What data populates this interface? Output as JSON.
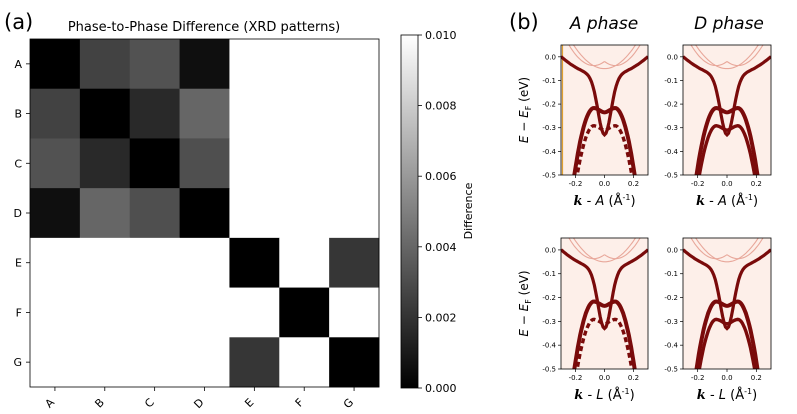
{
  "panel_labels": {
    "a": "(a)",
    "b": "(b)"
  },
  "chart_data": [
    {
      "type": "heatmap",
      "title": "Phase-to-Phase Difference (XRD patterns)",
      "rows": [
        "A",
        "B",
        "C",
        "D",
        "E",
        "F",
        "G"
      ],
      "cols": [
        "A",
        "B",
        "C",
        "D",
        "E",
        "F",
        "G"
      ],
      "values": [
        [
          0.0,
          0.0026,
          0.0032,
          0.0006,
          null,
          null,
          null
        ],
        [
          0.0026,
          0.0,
          0.0016,
          0.004,
          null,
          null,
          null
        ],
        [
          0.0032,
          0.0016,
          0.0,
          0.0031,
          null,
          null,
          null
        ],
        [
          0.0006,
          0.004,
          0.0031,
          0.0,
          null,
          null,
          null
        ],
        [
          null,
          null,
          null,
          null,
          0.0,
          null,
          0.0021
        ],
        [
          null,
          null,
          null,
          null,
          null,
          0.0,
          null
        ],
        [
          null,
          null,
          null,
          null,
          0.0021,
          null,
          0.0
        ]
      ],
      "colorbar": {
        "label": "Difference",
        "min": 0.0,
        "max": 0.01,
        "ticks": [
          "0.000",
          "0.002",
          "0.004",
          "0.006",
          "0.008",
          "0.010"
        ],
        "tick_values": [
          0,
          0.002,
          0.004,
          0.006,
          0.008,
          0.01
        ],
        "colormap": "gray"
      }
    },
    {
      "type": "band-structure",
      "column_titles": [
        "A phase",
        "D phase"
      ],
      "ylabel": "E − E_F (eV)",
      "ylabel_main": "E − E",
      "ylabel_sub": "F",
      "ylabel_unit": " (eV)",
      "ylim": [
        -0.5,
        0.05
      ],
      "xlim": [
        -0.3,
        0.3
      ],
      "y_ticks": [
        "0.0",
        "-0.1",
        "-0.2",
        "-0.3",
        "-0.4",
        "-0.5"
      ],
      "y_tick_values": [
        0,
        -0.1,
        -0.2,
        -0.3,
        -0.4,
        -0.5
      ],
      "x_ticks": [
        "-0.2",
        "0.0",
        "0.2"
      ],
      "x_tick_values": [
        -0.2,
        0,
        0.2
      ],
      "xlabel_top": {
        "k": "k",
        "point": "A",
        "unit_pre": " (Å",
        "unit_sup": "-1",
        "unit_post": ")"
      },
      "xlabel_bottom": {
        "k": "k",
        "point": "L",
        "unit_pre": " (Å",
        "unit_sup": "-1",
        "unit_post": ")"
      },
      "subplots": [
        {
          "name": "A-phase-kA",
          "column": "A phase",
          "path": "A",
          "gap": true,
          "flat_bands": [
            -0.215,
            -0.29
          ],
          "edge_line": true
        },
        {
          "name": "D-phase-kA",
          "column": "D phase",
          "path": "A",
          "gap": false,
          "flat_bands": [
            -0.215,
            -0.29
          ],
          "edge_line": false
        },
        {
          "name": "A-phase-kL",
          "column": "A phase",
          "path": "L",
          "gap": true,
          "flat_bands": [
            -0.215,
            -0.29
          ],
          "edge_line": false
        },
        {
          "name": "D-phase-kL",
          "column": "D phase",
          "path": "L",
          "gap": false,
          "flat_bands": [
            -0.215,
            -0.29
          ],
          "edge_line": false
        }
      ],
      "colors": {
        "background": "#fdefe9",
        "band": "#7a0b0b",
        "band_light": "#e8a79a",
        "edge": "#e0a030"
      }
    }
  ]
}
